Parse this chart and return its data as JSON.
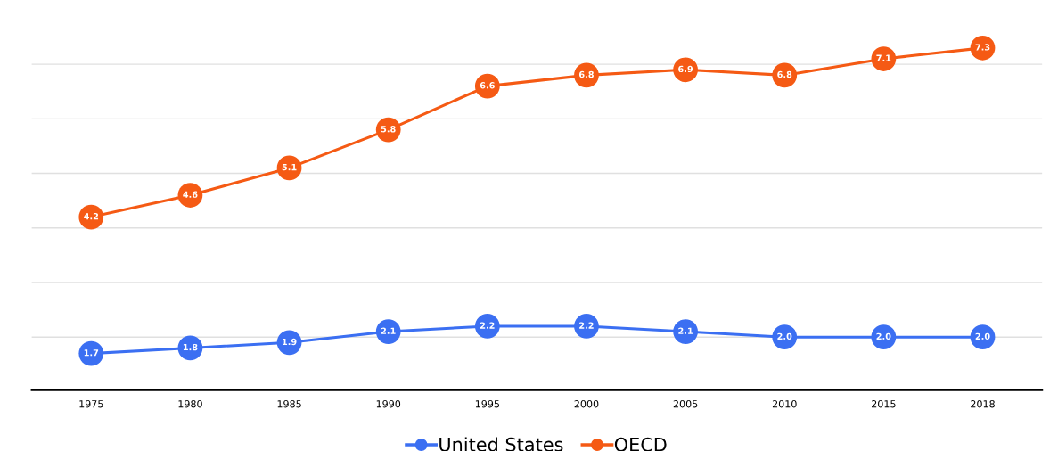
{
  "chart_data": {
    "type": "line",
    "categories": [
      "1975",
      "1980",
      "1985",
      "1990",
      "1995",
      "2000",
      "2005",
      "2010",
      "2015",
      "2018"
    ],
    "series": [
      {
        "name": "United States",
        "color": "#3b6ff2",
        "values": [
          1.7,
          1.8,
          1.9,
          2.1,
          2.2,
          2.2,
          2.1,
          2.0,
          2.0,
          2.0
        ],
        "value_labels": [
          "1.7",
          "1.8",
          "1.9",
          "2.1",
          "2.2",
          "2.2",
          "2.1",
          "2.0",
          "2.0",
          "2.0"
        ]
      },
      {
        "name": "OECD",
        "color": "#f55a14",
        "values": [
          4.2,
          4.6,
          5.1,
          5.8,
          6.6,
          6.8,
          6.9,
          6.8,
          7.1,
          7.3
        ],
        "value_labels": [
          "4.2",
          "4.6",
          "5.1",
          "5.8",
          "6.6",
          "6.8",
          "6.9",
          "6.8",
          "7.1",
          "7.3"
        ]
      }
    ],
    "tick_labels": "x",
    "grid": "y",
    "legend": "bottom",
    "marker": "circle",
    "line_style": "solid"
  }
}
